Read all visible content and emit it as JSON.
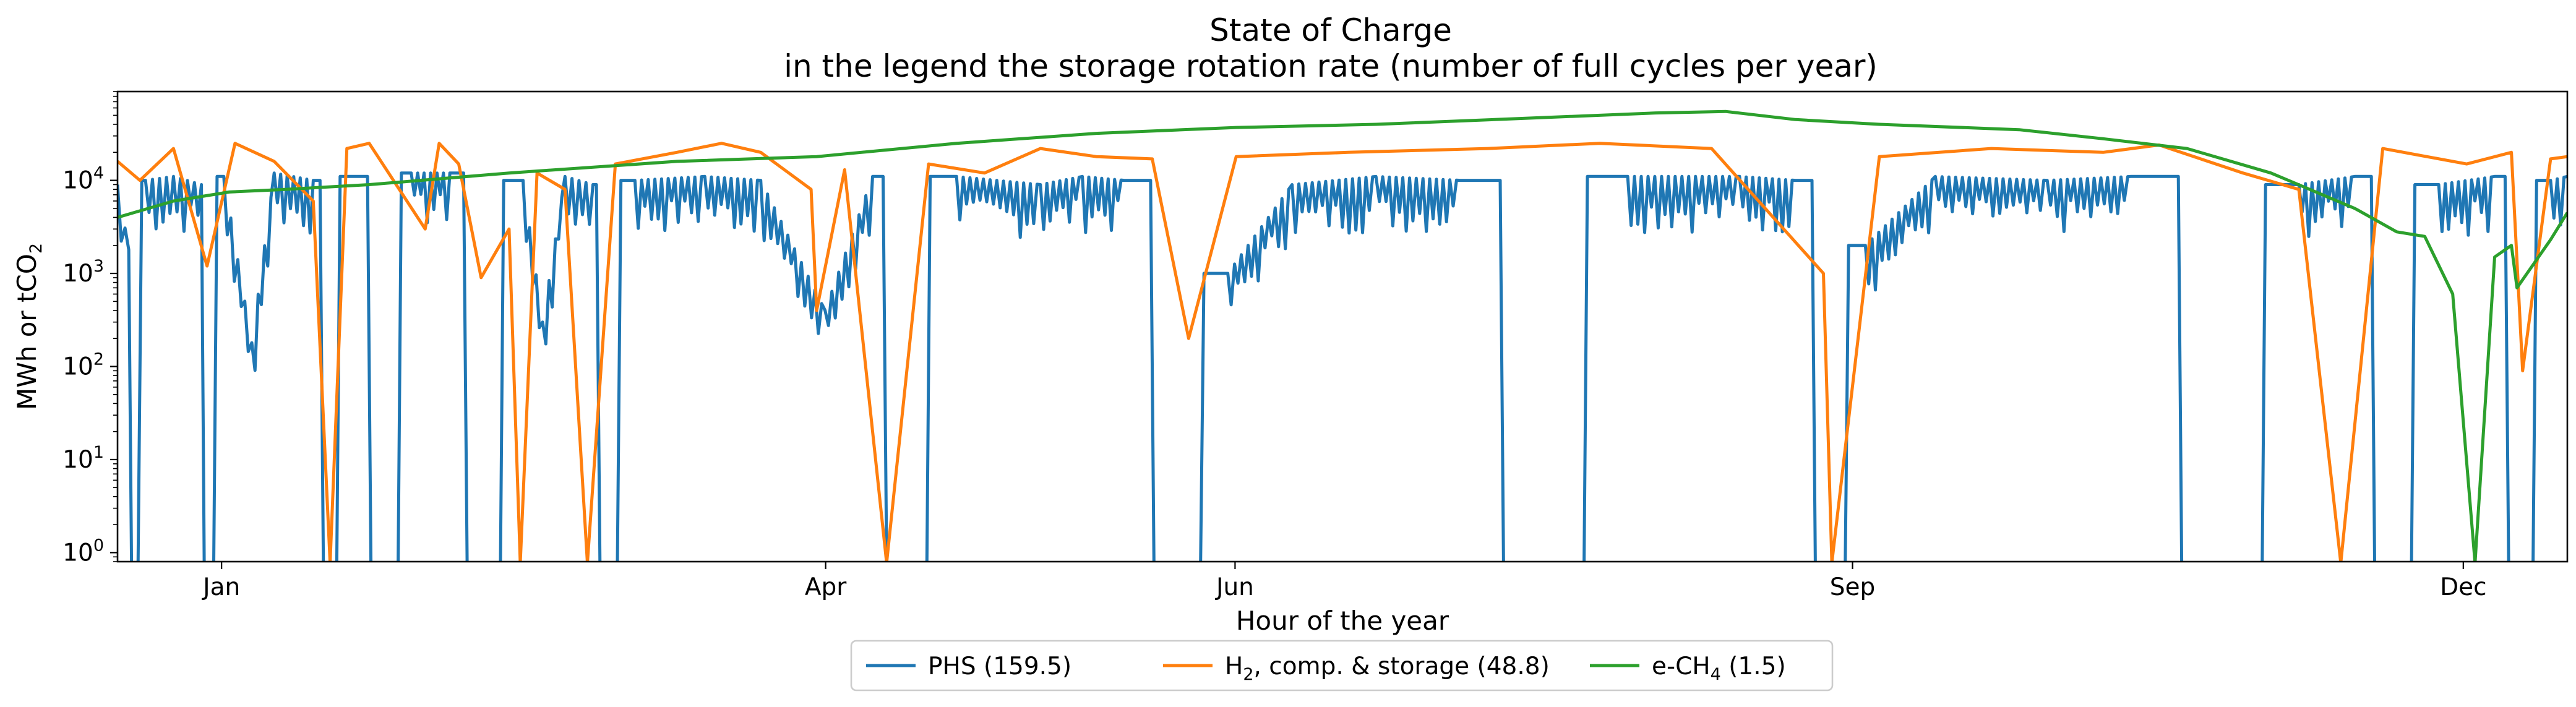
{
  "chart_data": {
    "type": "line",
    "title": "State of Charge",
    "subtitle": "in the legend the storage rotation rate (number of full cycles per year)",
    "xlabel": "Hour of the year",
    "ylabel_base": "MWh or tCO",
    "ylabel_sub": "2",
    "y_scale": "log",
    "ylim": [
      0.8,
      90000
    ],
    "xlim": [
      0,
      8760
    ],
    "x_ticks": [
      {
        "label": "Jan",
        "value": 372
      },
      {
        "label": "Apr",
        "value": 2532
      },
      {
        "label": "Jun",
        "value": 3996
      },
      {
        "label": "Sep",
        "value": 6204
      },
      {
        "label": "Dec",
        "value": 8388
      }
    ],
    "y_ticks": [
      {
        "base": "10",
        "exp": "0",
        "value": 1
      },
      {
        "base": "10",
        "exp": "1",
        "value": 10
      },
      {
        "base": "10",
        "exp": "2",
        "value": 100
      },
      {
        "base": "10",
        "exp": "3",
        "value": 1000
      },
      {
        "base": "10",
        "exp": "4",
        "value": 10000
      }
    ],
    "grid": false,
    "legend_position": "below-center",
    "series": [
      {
        "name": "PHS (159.5)",
        "legend_parts": [
          "PHS (159.5)"
        ],
        "color": "#1f77b4",
        "typical_range": [
          3000,
          12000
        ],
        "daily_cycling": true,
        "approx_points": [
          [
            0,
            9000
          ],
          [
            40,
            1800
          ],
          [
            60,
            0
          ],
          [
            100,
            10000
          ],
          [
            200,
            11000
          ],
          [
            300,
            9000
          ],
          [
            320,
            0
          ],
          [
            380,
            11000
          ],
          [
            480,
            180
          ],
          [
            560,
            12000
          ],
          [
            700,
            10000
          ],
          [
            760,
            0
          ],
          [
            820,
            11000
          ],
          [
            980,
            0
          ],
          [
            1050,
            12000
          ],
          [
            1200,
            12000
          ],
          [
            1300,
            0
          ],
          [
            1450,
            10000
          ],
          [
            1520,
            300
          ],
          [
            1600,
            11000
          ],
          [
            1700,
            9000
          ],
          [
            1750,
            0
          ],
          [
            1850,
            10000
          ],
          [
            2100,
            11000
          ],
          [
            2300,
            10000
          ],
          [
            2530,
            400
          ],
          [
            2700,
            11000
          ],
          [
            2800,
            0
          ],
          [
            3000,
            11000
          ],
          [
            3300,
            9000
          ],
          [
            3450,
            11000
          ],
          [
            3600,
            10000
          ],
          [
            3800,
            0
          ],
          [
            3970,
            1000
          ],
          [
            4200,
            9000
          ],
          [
            4500,
            11000
          ],
          [
            4800,
            10000
          ],
          [
            5100,
            0
          ],
          [
            5400,
            11000
          ],
          [
            5800,
            11000
          ],
          [
            6000,
            10000
          ],
          [
            6130,
            0
          ],
          [
            6250,
            2000
          ],
          [
            6500,
            11000
          ],
          [
            6900,
            10000
          ],
          [
            7200,
            11000
          ],
          [
            7550,
            0
          ],
          [
            7800,
            9000
          ],
          [
            8000,
            11000
          ],
          [
            8130,
            0
          ],
          [
            8300,
            9000
          ],
          [
            8500,
            11000
          ],
          [
            8600,
            0
          ],
          [
            8700,
            10000
          ],
          [
            8760,
            11000
          ]
        ]
      },
      {
        "name": "H2, comp. & storage (48.8)",
        "legend_parts": [
          "H",
          "2",
          ", comp. & storage (48.8)"
        ],
        "color": "#ff7f0e",
        "approx_points": [
          [
            0,
            16000
          ],
          [
            80,
            10000
          ],
          [
            200,
            22000
          ],
          [
            320,
            1200
          ],
          [
            420,
            25000
          ],
          [
            560,
            16000
          ],
          [
            700,
            6000
          ],
          [
            760,
            0
          ],
          [
            820,
            22000
          ],
          [
            900,
            25000
          ],
          [
            1100,
            3000
          ],
          [
            1150,
            25000
          ],
          [
            1220,
            15000
          ],
          [
            1300,
            900
          ],
          [
            1400,
            3000
          ],
          [
            1440,
            0
          ],
          [
            1500,
            12000
          ],
          [
            1600,
            8000
          ],
          [
            1680,
            0
          ],
          [
            1780,
            15000
          ],
          [
            2000,
            20000
          ],
          [
            2160,
            25000
          ],
          [
            2300,
            20000
          ],
          [
            2480,
            8000
          ],
          [
            2500,
            400
          ],
          [
            2600,
            13000
          ],
          [
            2750,
            0
          ],
          [
            2900,
            15000
          ],
          [
            3100,
            12000
          ],
          [
            3300,
            22000
          ],
          [
            3500,
            18000
          ],
          [
            3700,
            17000
          ],
          [
            3830,
            200
          ],
          [
            4000,
            18000
          ],
          [
            4400,
            20000
          ],
          [
            4900,
            22000
          ],
          [
            5300,
            25000
          ],
          [
            5700,
            22000
          ],
          [
            6100,
            1000
          ],
          [
            6130,
            0
          ],
          [
            6300,
            18000
          ],
          [
            6700,
            22000
          ],
          [
            7100,
            20000
          ],
          [
            7300,
            24000
          ],
          [
            7600,
            12000
          ],
          [
            7800,
            8000
          ],
          [
            7950,
            0
          ],
          [
            8100,
            22000
          ],
          [
            8400,
            15000
          ],
          [
            8560,
            20000
          ],
          [
            8600,
            90
          ],
          [
            8700,
            17000
          ],
          [
            8760,
            18000
          ]
        ]
      },
      {
        "name": "e-CH4 (1.5)",
        "legend_parts": [
          "e-CH",
          "4",
          " (1.5)"
        ],
        "color": "#2ca02c",
        "approx_points": [
          [
            0,
            4000
          ],
          [
            200,
            6000
          ],
          [
            400,
            7500
          ],
          [
            600,
            8000
          ],
          [
            900,
            9000
          ],
          [
            1400,
            12000
          ],
          [
            2000,
            16000
          ],
          [
            2500,
            18000
          ],
          [
            3000,
            25000
          ],
          [
            3500,
            32000
          ],
          [
            4000,
            37000
          ],
          [
            4500,
            40000
          ],
          [
            5000,
            46000
          ],
          [
            5500,
            53000
          ],
          [
            5750,
            55000
          ],
          [
            6000,
            45000
          ],
          [
            6300,
            40000
          ],
          [
            6800,
            35000
          ],
          [
            7100,
            28000
          ],
          [
            7400,
            22000
          ],
          [
            7700,
            12000
          ],
          [
            8000,
            5000
          ],
          [
            8150,
            2800
          ],
          [
            8250,
            2500
          ],
          [
            8350,
            600
          ],
          [
            8430,
            0
          ],
          [
            8500,
            1500
          ],
          [
            8560,
            2000
          ],
          [
            8580,
            700
          ],
          [
            8700,
            2300
          ],
          [
            8760,
            4500
          ]
        ]
      }
    ]
  }
}
